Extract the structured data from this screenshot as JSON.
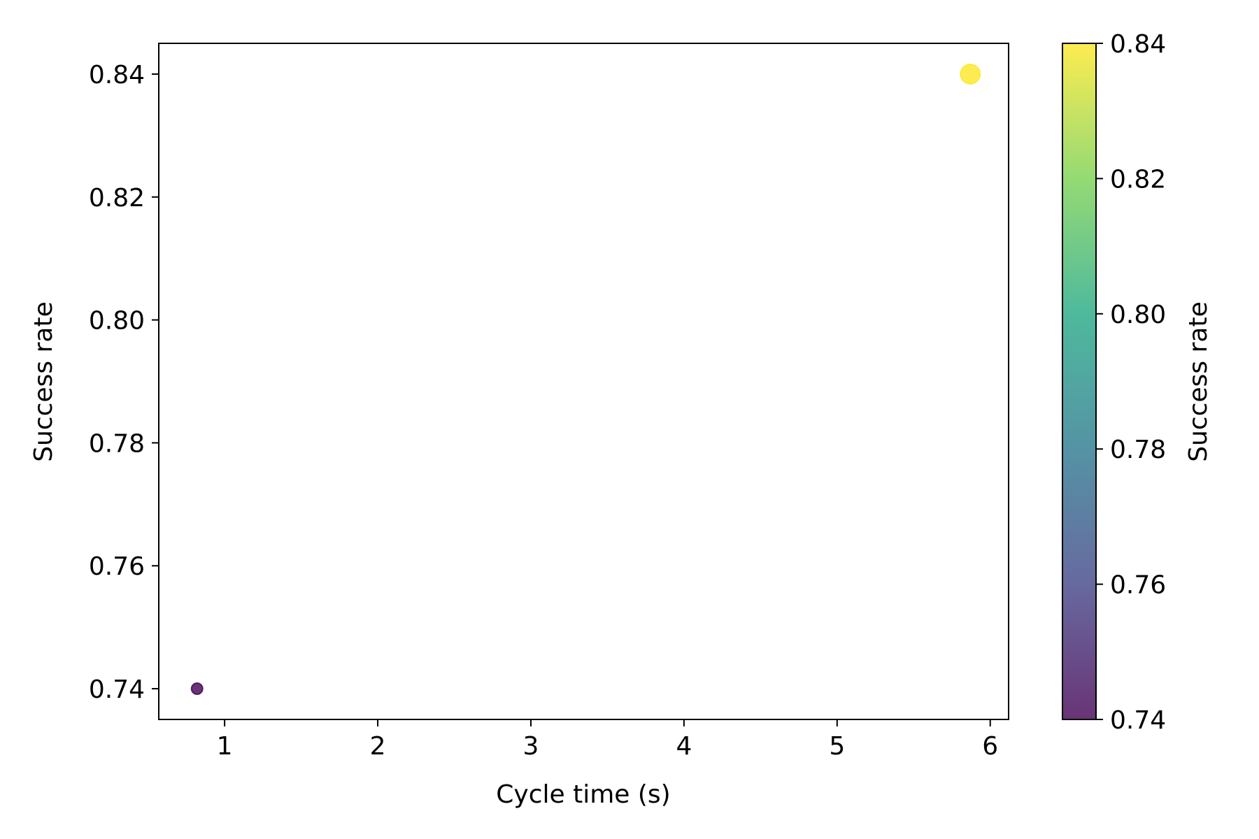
{
  "chart_data": {
    "type": "scatter",
    "title": "",
    "xlabel": "Cycle time (s)",
    "ylabel": "Success rate",
    "xlim": [
      0.57,
      6.12
    ],
    "ylim": [
      0.735,
      0.845
    ],
    "xticks": [
      1,
      2,
      3,
      4,
      5,
      6
    ],
    "xtick_labels": [
      "1",
      "2",
      "3",
      "4",
      "5",
      "6"
    ],
    "yticks": [
      0.74,
      0.76,
      0.78,
      0.8,
      0.82,
      0.84
    ],
    "ytick_labels": [
      "0.74",
      "0.76",
      "0.78",
      "0.80",
      "0.82",
      "0.84"
    ],
    "grid": false,
    "points": [
      {
        "x": 0.82,
        "y": 0.74,
        "color_value": 0.74,
        "size": "small"
      },
      {
        "x": 5.87,
        "y": 0.84,
        "color_value": 0.84,
        "size": "large"
      }
    ],
    "colorbar": {
      "label": "Success rate",
      "colormap": "viridis",
      "range": [
        0.74,
        0.84
      ],
      "ticks": [
        0.74,
        0.76,
        0.78,
        0.8,
        0.82,
        0.84
      ],
      "tick_labels": [
        "0.74",
        "0.76",
        "0.78",
        "0.80",
        "0.82",
        "0.84"
      ],
      "colors": [
        "#440154",
        "#414487",
        "#2a788e",
        "#22a884",
        "#7ad151",
        "#fde725"
      ]
    },
    "marker_alpha": 0.8
  }
}
